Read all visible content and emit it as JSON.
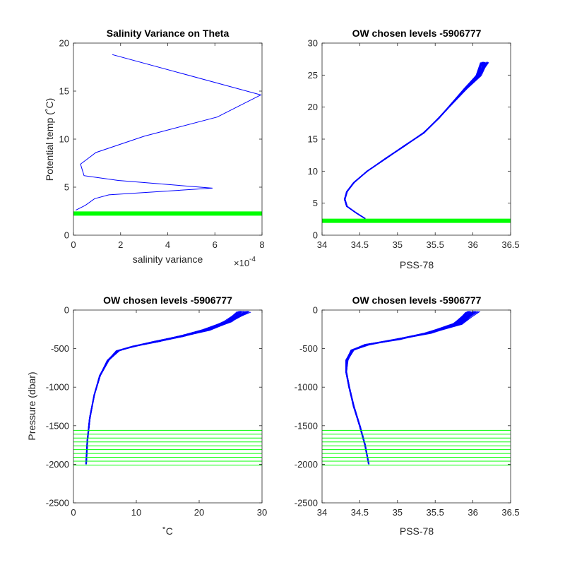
{
  "chart_data": [
    {
      "type": "line",
      "title": "Salinity Variance on Theta",
      "xlabel": "salinity variance",
      "ylabel": "Potential temp (˚C)",
      "xlim": [
        0,
        8
      ],
      "ylim": [
        0,
        20
      ],
      "x_multiplier_label": "×10",
      "x_multiplier_exponent": "-4",
      "xticks": [
        "0",
        "2",
        "4",
        "6",
        "8"
      ],
      "yticks": [
        "0",
        "5",
        "10",
        "15",
        "20"
      ],
      "series": [
        {
          "color": "#0000ff",
          "x": [
            1.65,
            7.95,
            6.1,
            3.0,
            0.95,
            0.3,
            0.45,
            1.9,
            5.9,
            1.5,
            0.9,
            0.5,
            0.1
          ],
          "y": [
            18.8,
            14.6,
            12.3,
            10.3,
            8.6,
            7.4,
            6.2,
            5.7,
            4.9,
            4.2,
            3.8,
            3.1,
            2.6
          ]
        }
      ],
      "levels": {
        "color": "#00ff00",
        "y": [
          2.25
        ],
        "style": "thick"
      }
    },
    {
      "type": "line",
      "title": "OW chosen levels -5906777",
      "xlabel": "PSS-78",
      "ylabel": "",
      "xlim": [
        34,
        36.5
      ],
      "ylim": [
        0,
        30
      ],
      "xticks": [
        "34",
        "34.5",
        "35",
        "35.5",
        "36",
        "36.5"
      ],
      "yticks": [
        "0",
        "5",
        "10",
        "15",
        "20",
        "25",
        "30"
      ],
      "bundle": {
        "color": "#0000ff",
        "count": 40,
        "x": [
          34.57,
          34.45,
          34.33,
          34.3,
          34.33,
          34.42,
          34.6,
          34.85,
          35.1,
          35.35,
          35.55,
          35.72,
          35.9,
          36.08,
          36.15
        ],
        "y": [
          2.6,
          3.5,
          4.5,
          5.6,
          6.8,
          8.2,
          10.0,
          12.0,
          14.0,
          16.0,
          18.3,
          20.5,
          22.8,
          25.0,
          27.0
        ]
      },
      "levels": {
        "color": "#00ff00",
        "y": [
          2.25
        ],
        "style": "thick"
      }
    },
    {
      "type": "line",
      "title": "OW chosen levels -5906777",
      "xlabel": "˚C",
      "ylabel": "Pressure (dbar)",
      "xlim": [
        0,
        30
      ],
      "ylim": [
        -2500,
        0
      ],
      "xticks": [
        "0",
        "10",
        "20",
        "30"
      ],
      "yticks": [
        "-2500",
        "-2000",
        "-1500",
        "-1000",
        "-500",
        "0"
      ],
      "bundle": {
        "color": "#0000ff",
        "count": 40,
        "x": [
          2.0,
          2.2,
          2.6,
          3.3,
          4.2,
          5.5,
          7.0,
          9.5,
          13.0,
          17.0,
          21.0,
          24.5,
          27.0
        ],
        "y": [
          -2000,
          -1700,
          -1400,
          -1100,
          -850,
          -650,
          -530,
          -470,
          -410,
          -340,
          -260,
          -150,
          -20
        ]
      },
      "levels": {
        "color": "#00ff00",
        "y": [
          -1560,
          -1610,
          -1660,
          -1710,
          -1760,
          -1810,
          -1860,
          -1910,
          -1960,
          -2010
        ]
      }
    },
    {
      "type": "line",
      "title": "OW chosen levels -5906777",
      "xlabel": "PSS-78",
      "ylabel": "",
      "xlim": [
        34,
        36.5
      ],
      "ylim": [
        -2500,
        0
      ],
      "xticks": [
        "34",
        "34.5",
        "35",
        "35.5",
        "36",
        "36.5"
      ],
      "yticks": [
        "-2500",
        "-2000",
        "-1500",
        "-1000",
        "-500",
        "0"
      ],
      "bundle": {
        "color": "#0000ff",
        "count": 40,
        "x": [
          34.62,
          34.57,
          34.5,
          34.42,
          34.36,
          34.32,
          34.33,
          34.4,
          34.6,
          35.0,
          35.4,
          35.8,
          36.0
        ],
        "y": [
          -2000,
          -1750,
          -1500,
          -1250,
          -1000,
          -800,
          -650,
          -520,
          -450,
          -380,
          -300,
          -180,
          -20
        ]
      },
      "levels": {
        "color": "#00ff00",
        "y": [
          -1560,
          -1610,
          -1660,
          -1710,
          -1760,
          -1810,
          -1860,
          -1910,
          -1960,
          -2010
        ]
      }
    }
  ]
}
